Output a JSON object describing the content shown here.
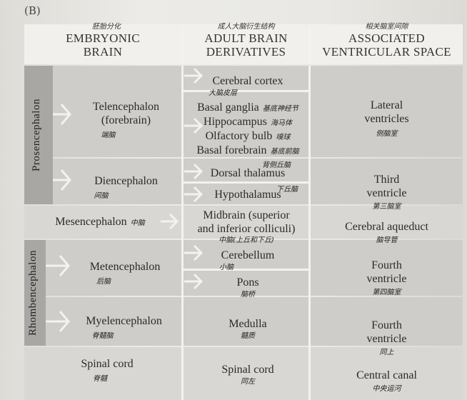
{
  "panel_label": "(B)",
  "headers": {
    "embryonic": {
      "hand": "胚胎分化",
      "title": [
        "EMBRYONIC",
        "BRAIN"
      ]
    },
    "adult": {
      "hand": "成人大脑衍生结构",
      "title": [
        "ADULT BRAIN",
        "DERIVATIVES"
      ]
    },
    "ventricular": {
      "hand": "相关脑室间隙",
      "title": [
        "ASSOCIATED",
        "VENTRICULAR SPACE"
      ]
    }
  },
  "groups": {
    "prosencephalon": "Prosencephalon",
    "rhombencephalon": "Rhombencephalon"
  },
  "rows": {
    "telencephalon": {
      "name": [
        "Telencephalon",
        "(forebrain)"
      ],
      "hand": "端脑",
      "derivatives": [
        {
          "text": "Cerebral cortex",
          "hand": "大脑皮层"
        },
        {
          "text": "Basal ganglia",
          "hand": "基底神经节"
        },
        {
          "text": "Hippocampus",
          "hand": "海马体"
        },
        {
          "text": "Olfactory bulb",
          "hand": "嗅球"
        },
        {
          "text": "Basal forebrain",
          "hand": "基底前脑"
        }
      ],
      "space": [
        "Lateral",
        "ventricles"
      ],
      "space_hand": "侧脑室"
    },
    "diencephalon": {
      "name": [
        "Diencephalon"
      ],
      "hand": "间脑",
      "derivatives": [
        {
          "text": "Dorsal thalamus",
          "hand": "背侧丘脑"
        },
        {
          "text": "Hypothalamus",
          "hand": "下丘脑"
        }
      ],
      "space": [
        "Third",
        "ventricle"
      ],
      "space_hand": "第三脑室"
    },
    "mesencephalon": {
      "name": [
        "Mesencephalon"
      ],
      "hand": "中脑",
      "derivatives": [
        {
          "text": "Midbrain (superior",
          "hand": ""
        },
        {
          "text": "and inferior colliculi)",
          "hand": "中脑(上丘和下丘)"
        }
      ],
      "space": [
        "Cerebral aqueduct"
      ],
      "space_hand": "脑导管"
    },
    "metencephalon": {
      "name": [
        "Metencephalon"
      ],
      "hand": "后脑",
      "derivatives": [
        {
          "text": "Cerebellum",
          "hand": "小脑"
        },
        {
          "text": "Pons",
          "hand": "脑桥"
        }
      ],
      "space": [
        "Fourth",
        "ventricle"
      ],
      "space_hand": "第四脑室"
    },
    "myelencephalon": {
      "name": [
        "Myelencephalon"
      ],
      "hand": "脊髓脑",
      "derivatives": [
        {
          "text": "Medulla",
          "hand": "髓质"
        }
      ],
      "space": [
        "Fourth",
        "ventricle"
      ],
      "space_hand": "同上"
    },
    "spinal": {
      "name": [
        "Spinal cord"
      ],
      "hand": "脊髓",
      "derivatives": [
        {
          "text": "Spinal cord",
          "hand": "同左"
        }
      ],
      "space": [
        "Central canal"
      ],
      "space_hand": "中央运河"
    }
  }
}
